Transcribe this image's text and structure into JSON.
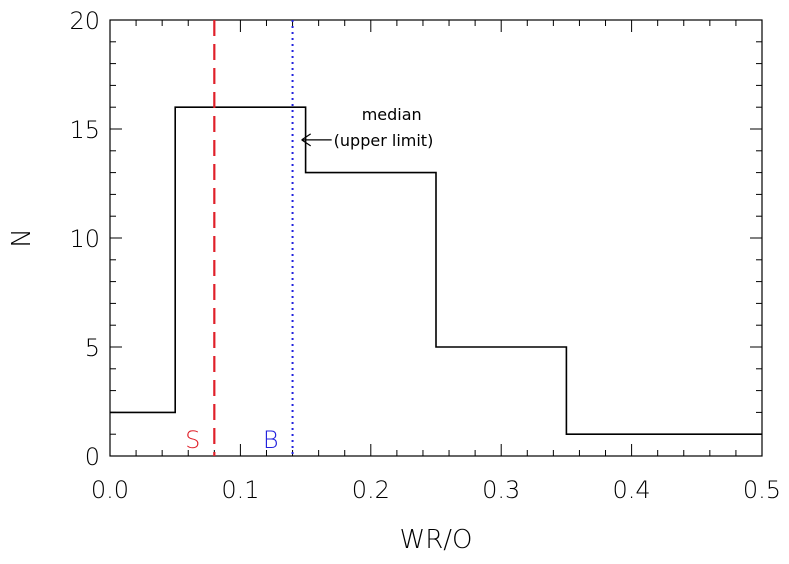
{
  "chart_data": {
    "type": "histogram",
    "xlabel": "WR/O",
    "ylabel": "N",
    "xlim": [
      0.0,
      0.5
    ],
    "ylim": [
      0,
      20
    ],
    "x_ticks": [
      "0.0",
      "0.1",
      "0.2",
      "0.3",
      "0.4",
      "0.5"
    ],
    "y_ticks": [
      "0",
      "5",
      "10",
      "15",
      "20"
    ],
    "bins": [
      {
        "start": 0.0,
        "end": 0.05,
        "value": 2
      },
      {
        "start": 0.05,
        "end": 0.15,
        "value": 16
      },
      {
        "start": 0.15,
        "end": 0.25,
        "value": 13
      },
      {
        "start": 0.25,
        "end": 0.35,
        "value": 5
      },
      {
        "start": 0.35,
        "end": 0.5,
        "value": 1
      }
    ],
    "vertical_lines": [
      {
        "x": 0.08,
        "label": "S",
        "color": "#e0202a",
        "style": "dashed"
      },
      {
        "x": 0.14,
        "label": "B",
        "color": "#2222dd",
        "style": "dotted"
      }
    ],
    "annotation": {
      "lines": [
        "median",
        "(upper limit)"
      ],
      "arrow_direction": "left",
      "x": 0.17,
      "y": 14.5
    },
    "grid": false,
    "legend": "none"
  }
}
